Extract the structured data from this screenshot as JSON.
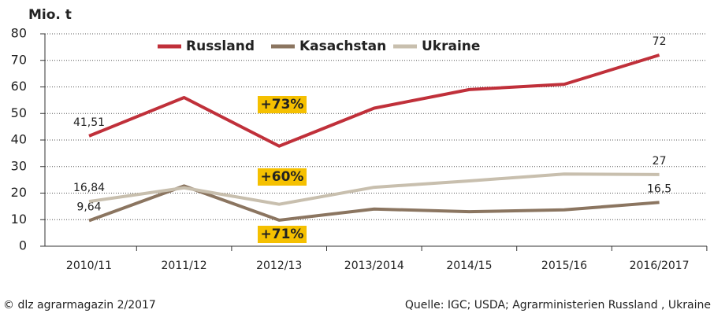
{
  "chart_data": {
    "type": "line",
    "y_label": "Mio. t",
    "categories": [
      "2010/11",
      "2011/12",
      "2012/13",
      "2013/2014",
      "2014/15",
      "2015/16",
      "2016/2017"
    ],
    "series": [
      {
        "name": "Russland",
        "color": "#c0303a",
        "values": [
          41.51,
          56,
          37.7,
          52,
          59,
          61,
          72
        ],
        "value_labels": [
          "41,51",
          null,
          null,
          null,
          null,
          null,
          "72"
        ]
      },
      {
        "name": "Kasachstan",
        "color": "#8b7560",
        "values": [
          9.64,
          22.7,
          9.8,
          14,
          13,
          13.7,
          16.5
        ],
        "value_labels": [
          "9,64",
          null,
          null,
          null,
          null,
          null,
          "16,5"
        ]
      },
      {
        "name": "Ukraine",
        "color": "#c8bfae",
        "values": [
          16.84,
          22,
          15.8,
          22.2,
          24.6,
          27.2,
          27
        ],
        "value_labels": [
          "16,84",
          null,
          null,
          null,
          null,
          null,
          "27"
        ]
      }
    ],
    "annotations": [
      "+73%",
      "+60%",
      "+71%"
    ],
    "ylim": [
      0,
      80
    ],
    "yticks": [
      0,
      10,
      20,
      30,
      40,
      50,
      60,
      70,
      80
    ],
    "grid": true,
    "footer_left": "© dlz agrarmagazin 2/2017",
    "footer_right": "Quelle: IGC; USDA; Agrarministerien Russland , Ukraine"
  }
}
